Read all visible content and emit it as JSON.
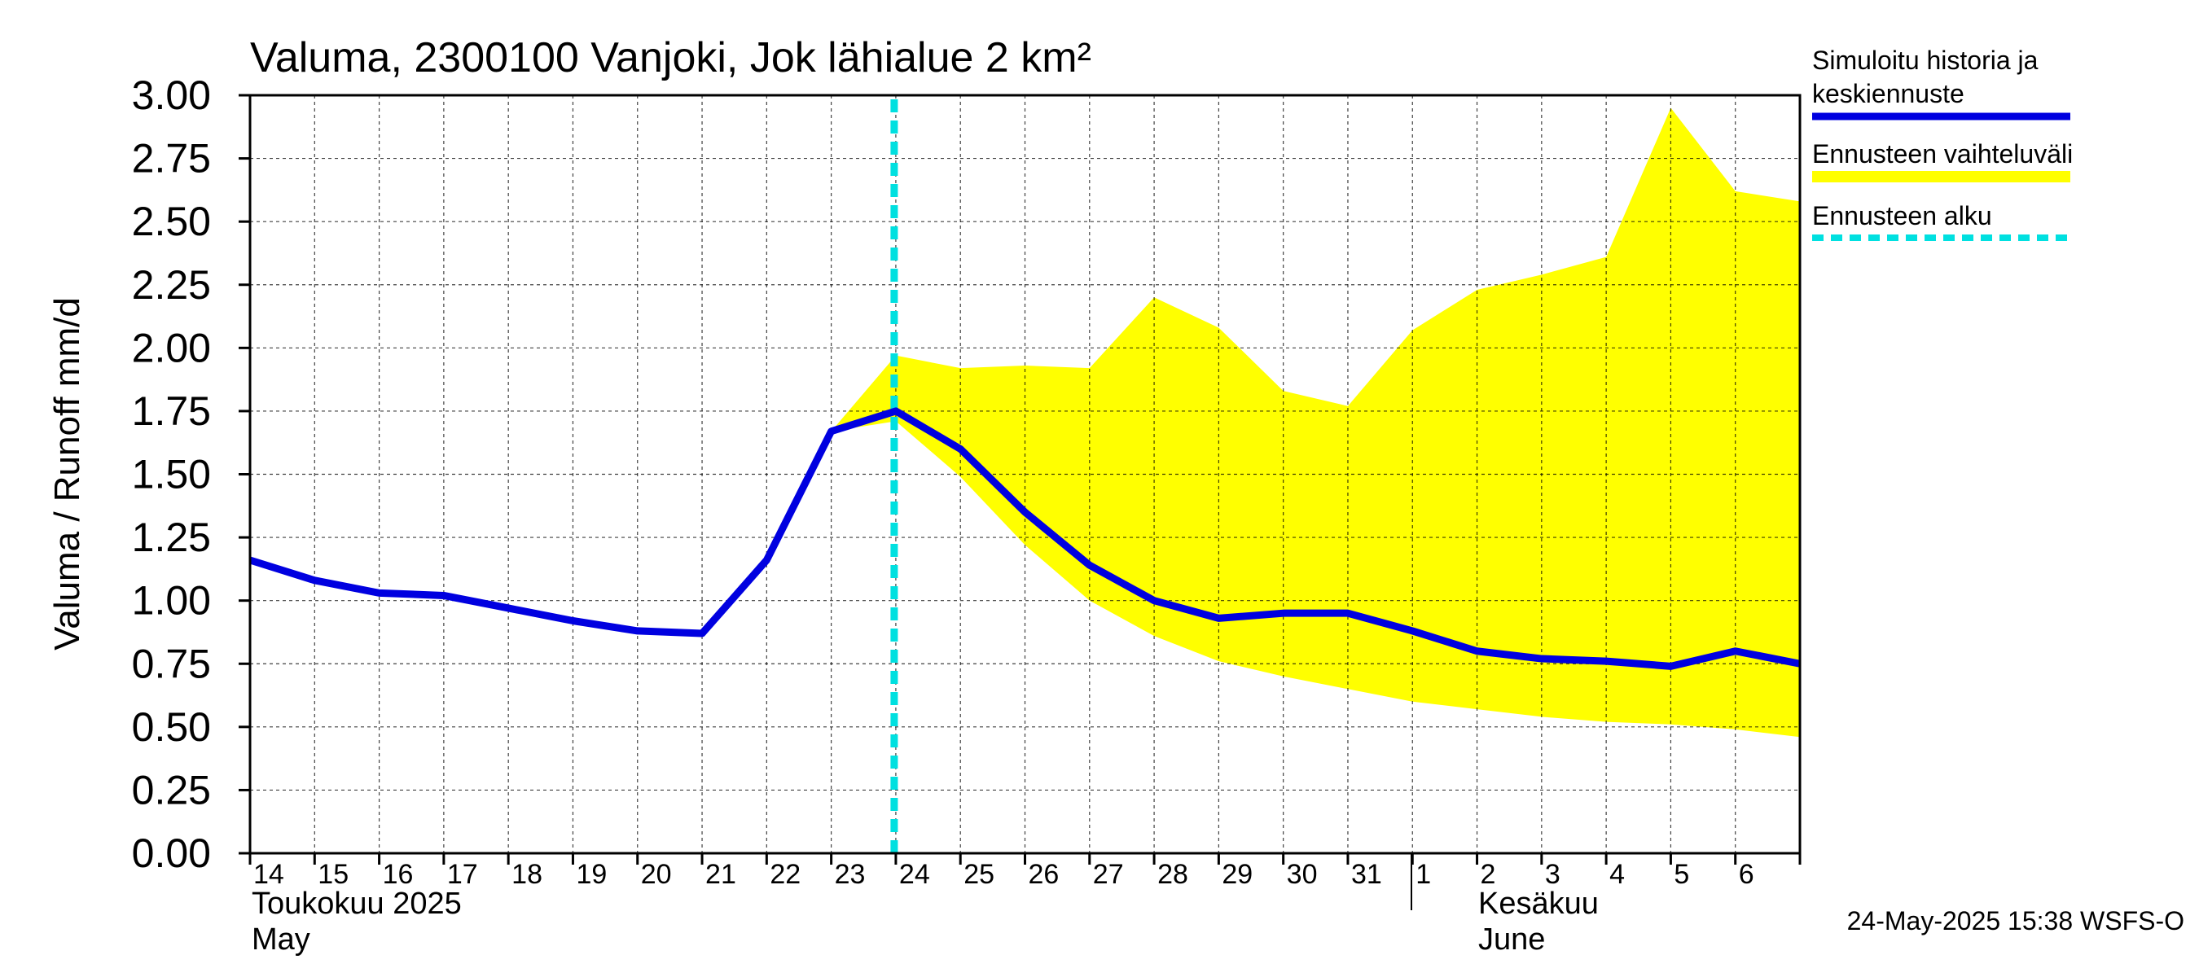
{
  "chart_data": {
    "type": "line",
    "title": "Valuma, 2300100 Vanjoki, Jok lähialue 2 km²",
    "ylabel": "Valuma / Runoff     mm/d",
    "ylim": [
      0,
      3.0
    ],
    "y_ticks": [
      "0.00",
      "0.25",
      "0.50",
      "0.75",
      "1.00",
      "1.25",
      "1.50",
      "1.75",
      "2.00",
      "2.25",
      "2.50",
      "2.75",
      "3.00"
    ],
    "x_tick_labels": [
      "14",
      "15",
      "16",
      "17",
      "18",
      "19",
      "20",
      "21",
      "22",
      "23",
      "24",
      "25",
      "26",
      "27",
      "28",
      "29",
      "30",
      "31",
      "1",
      "2",
      "3",
      "4",
      "5",
      "6"
    ],
    "month_labels": {
      "may_fi": "Toukokuu  2025",
      "may_en": "May",
      "june_fi": "Kesäkuu",
      "june_en": "June"
    },
    "x_start_day_index": 0,
    "x_end_day_index": 24,
    "grid": true,
    "forecast_start_day_index": 10,
    "series": [
      {
        "name": "Simuloitu historia ja keskiennuste",
        "color": "#0000e0",
        "x": [
          0,
          1,
          2,
          3,
          4,
          5,
          6,
          7,
          8,
          9,
          10,
          11,
          12,
          13,
          14,
          15,
          16,
          17,
          18,
          19,
          20,
          21,
          22,
          23,
          24
        ],
        "values": [
          1.16,
          1.08,
          1.03,
          1.02,
          0.97,
          0.92,
          0.88,
          0.87,
          1.16,
          1.67,
          1.75,
          1.6,
          1.35,
          1.14,
          1.0,
          0.93,
          0.95,
          0.95,
          0.88,
          0.8,
          0.77,
          0.76,
          0.74,
          0.8,
          0.75
        ]
      }
    ],
    "band": {
      "name": "Ennusteen vaihteluväli",
      "color": "#ffff00",
      "x": [
        9,
        10,
        11,
        12,
        13,
        14,
        15,
        16,
        17,
        18,
        19,
        20,
        21,
        22,
        23,
        24
      ],
      "upper": [
        1.67,
        1.97,
        1.92,
        1.93,
        1.92,
        2.2,
        2.08,
        1.83,
        1.77,
        2.07,
        2.23,
        2.29,
        2.36,
        2.95,
        2.62,
        2.58
      ],
      "lower": [
        1.67,
        1.71,
        1.49,
        1.22,
        1.0,
        0.86,
        0.76,
        0.7,
        0.65,
        0.6,
        0.57,
        0.54,
        0.52,
        0.51,
        0.49,
        0.46
      ]
    },
    "legend": {
      "position": "right",
      "items": [
        {
          "label_line1": "Simuloitu historia ja",
          "label_line2": "keskiennuste",
          "color": "#0000e0",
          "style": "solid"
        },
        {
          "label_line1": "Ennusteen vaihteluväli",
          "label_line2": "",
          "color": "#ffff00",
          "style": "band"
        },
        {
          "label_line1": "Ennusteen alku",
          "label_line2": "",
          "color": "#00e0e0",
          "style": "dashed"
        }
      ]
    },
    "timestamp": "24-May-2025 15:38 WSFS-O"
  }
}
